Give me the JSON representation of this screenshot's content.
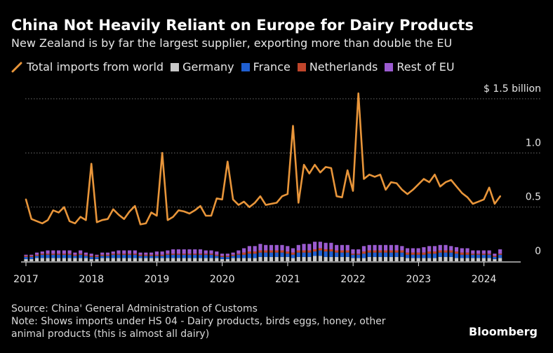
{
  "header": {
    "title": "China Not Heavily Reliant on Europe for Dairy Products",
    "subtitle": "New Zealand is by far the largest supplier, exporting more than double the EU"
  },
  "legend": [
    {
      "label": "Total imports from world",
      "color": "#e8953a",
      "kind": "line"
    },
    {
      "label": "Germany",
      "color": "#c8c8c8",
      "kind": "box"
    },
    {
      "label": "France",
      "color": "#1f5fd1",
      "kind": "box"
    },
    {
      "label": "Netherlands",
      "color": "#c0452b",
      "kind": "box"
    },
    {
      "label": "Rest of EU",
      "color": "#9b5bd0",
      "kind": "box"
    }
  ],
  "footer": {
    "source": "Source: China' General Administration of Customs",
    "note_line1": "Note: Shows imports under HS 04 - Dairy products, birds eggs, honey, other",
    "note_line2": "animal products (this is almost all dairy)"
  },
  "brand": "Bloomberg",
  "chart_data": {
    "type": "line",
    "title": "China Not Heavily Reliant on Europe for Dairy Products",
    "ylabel": "$ billion",
    "ylim": [
      0,
      1.5
    ],
    "y_ticks": [
      {
        "value": 1.5,
        "label": "$ 1.5 billion"
      },
      {
        "value": 1.0,
        "label": "1.0"
      },
      {
        "value": 0.5,
        "label": "0.5"
      },
      {
        "value": 0,
        "label": "0"
      }
    ],
    "x_start": 2017.0,
    "x_step": 0.0833,
    "x_ticks": [
      {
        "value": 2017,
        "label": "2017"
      },
      {
        "value": 2018,
        "label": "2018"
      },
      {
        "value": 2019,
        "label": "2019"
      },
      {
        "value": 2020,
        "label": "2020"
      },
      {
        "value": 2021,
        "label": "2021"
      },
      {
        "value": 2022,
        "label": "2022"
      },
      {
        "value": 2023,
        "label": "2023"
      },
      {
        "value": 2024,
        "label": "2024"
      }
    ],
    "grid": true,
    "series": [
      {
        "name": "Total imports from world",
        "type": "line",
        "color": "#e8953a",
        "values": [
          0.57,
          0.39,
          0.37,
          0.35,
          0.38,
          0.47,
          0.45,
          0.5,
          0.37,
          0.35,
          0.41,
          0.38,
          0.9,
          0.36,
          0.38,
          0.39,
          0.48,
          0.43,
          0.39,
          0.46,
          0.51,
          0.34,
          0.35,
          0.45,
          0.42,
          1.0,
          0.38,
          0.41,
          0.47,
          0.46,
          0.44,
          0.47,
          0.51,
          0.42,
          0.42,
          0.58,
          0.57,
          0.92,
          0.57,
          0.52,
          0.55,
          0.5,
          0.54,
          0.6,
          0.52,
          0.53,
          0.54,
          0.6,
          0.62,
          1.25,
          0.54,
          0.89,
          0.81,
          0.89,
          0.82,
          0.87,
          0.86,
          0.6,
          0.59,
          0.84,
          0.65,
          1.55,
          0.76,
          0.8,
          0.78,
          0.8,
          0.66,
          0.73,
          0.72,
          0.66,
          0.62,
          0.66,
          0.71,
          0.76,
          0.73,
          0.8,
          0.69,
          0.73,
          0.75,
          0.69,
          0.63,
          0.59,
          0.53,
          0.55,
          0.57,
          0.68,
          0.53,
          0.6
        ]
      },
      {
        "name": "Germany",
        "type": "bar",
        "color": "#c8c8c8",
        "values": [
          0.02,
          0.02,
          0.03,
          0.03,
          0.03,
          0.03,
          0.03,
          0.03,
          0.03,
          0.03,
          0.03,
          0.03,
          0.02,
          0.02,
          0.03,
          0.03,
          0.03,
          0.03,
          0.03,
          0.03,
          0.03,
          0.03,
          0.03,
          0.03,
          0.03,
          0.03,
          0.03,
          0.03,
          0.03,
          0.03,
          0.03,
          0.03,
          0.03,
          0.03,
          0.03,
          0.03,
          0.02,
          0.02,
          0.03,
          0.03,
          0.03,
          0.03,
          0.03,
          0.04,
          0.04,
          0.04,
          0.04,
          0.04,
          0.04,
          0.03,
          0.04,
          0.04,
          0.04,
          0.05,
          0.05,
          0.04,
          0.04,
          0.04,
          0.04,
          0.04,
          0.03,
          0.03,
          0.03,
          0.04,
          0.04,
          0.04,
          0.04,
          0.04,
          0.04,
          0.04,
          0.03,
          0.03,
          0.03,
          0.03,
          0.03,
          0.03,
          0.04,
          0.04,
          0.04,
          0.03,
          0.03,
          0.03,
          0.03,
          0.03,
          0.03,
          0.03,
          0.02,
          0.03
        ]
      },
      {
        "name": "France",
        "type": "bar",
        "color": "#1f5fd1",
        "values": [
          0.02,
          0.02,
          0.02,
          0.03,
          0.03,
          0.03,
          0.03,
          0.03,
          0.03,
          0.02,
          0.03,
          0.02,
          0.02,
          0.02,
          0.02,
          0.02,
          0.03,
          0.03,
          0.03,
          0.03,
          0.03,
          0.02,
          0.02,
          0.02,
          0.02,
          0.02,
          0.03,
          0.03,
          0.03,
          0.03,
          0.03,
          0.03,
          0.03,
          0.03,
          0.03,
          0.02,
          0.02,
          0.02,
          0.02,
          0.03,
          0.03,
          0.04,
          0.04,
          0.04,
          0.04,
          0.04,
          0.04,
          0.04,
          0.03,
          0.03,
          0.04,
          0.04,
          0.04,
          0.04,
          0.05,
          0.05,
          0.05,
          0.04,
          0.04,
          0.04,
          0.03,
          0.03,
          0.04,
          0.04,
          0.04,
          0.04,
          0.04,
          0.04,
          0.04,
          0.04,
          0.03,
          0.03,
          0.03,
          0.03,
          0.04,
          0.04,
          0.04,
          0.04,
          0.04,
          0.04,
          0.03,
          0.03,
          0.03,
          0.03,
          0.03,
          0.03,
          0.02,
          0.03
        ]
      },
      {
        "name": "Netherlands",
        "type": "bar",
        "color": "#c0452b",
        "values": [
          0.01,
          0.01,
          0.01,
          0.01,
          0.01,
          0.01,
          0.01,
          0.01,
          0.01,
          0.01,
          0.01,
          0.01,
          0.01,
          0.01,
          0.01,
          0.01,
          0.01,
          0.01,
          0.01,
          0.01,
          0.01,
          0.01,
          0.01,
          0.01,
          0.01,
          0.01,
          0.01,
          0.01,
          0.01,
          0.01,
          0.01,
          0.01,
          0.01,
          0.01,
          0.01,
          0.01,
          0.01,
          0.01,
          0.01,
          0.01,
          0.02,
          0.02,
          0.02,
          0.02,
          0.02,
          0.02,
          0.02,
          0.02,
          0.02,
          0.02,
          0.02,
          0.02,
          0.02,
          0.02,
          0.02,
          0.02,
          0.02,
          0.02,
          0.02,
          0.02,
          0.01,
          0.01,
          0.02,
          0.02,
          0.02,
          0.02,
          0.02,
          0.02,
          0.02,
          0.02,
          0.02,
          0.02,
          0.02,
          0.02,
          0.02,
          0.02,
          0.02,
          0.02,
          0.02,
          0.02,
          0.02,
          0.02,
          0.01,
          0.01,
          0.01,
          0.01,
          0.01,
          0.01
        ]
      },
      {
        "name": "Rest of EU",
        "type": "bar",
        "color": "#9b5bd0",
        "values": [
          0.01,
          0.01,
          0.02,
          0.02,
          0.03,
          0.03,
          0.03,
          0.03,
          0.03,
          0.02,
          0.03,
          0.02,
          0.02,
          0.01,
          0.02,
          0.02,
          0.02,
          0.03,
          0.03,
          0.03,
          0.03,
          0.02,
          0.02,
          0.02,
          0.03,
          0.03,
          0.03,
          0.04,
          0.04,
          0.04,
          0.04,
          0.04,
          0.04,
          0.03,
          0.03,
          0.03,
          0.02,
          0.02,
          0.02,
          0.03,
          0.04,
          0.05,
          0.05,
          0.06,
          0.05,
          0.05,
          0.05,
          0.05,
          0.05,
          0.04,
          0.05,
          0.06,
          0.06,
          0.07,
          0.06,
          0.06,
          0.06,
          0.05,
          0.05,
          0.05,
          0.04,
          0.04,
          0.05,
          0.05,
          0.05,
          0.05,
          0.05,
          0.05,
          0.05,
          0.04,
          0.04,
          0.04,
          0.04,
          0.05,
          0.05,
          0.05,
          0.05,
          0.05,
          0.04,
          0.04,
          0.04,
          0.04,
          0.03,
          0.03,
          0.03,
          0.03,
          0.02,
          0.04
        ]
      }
    ]
  }
}
